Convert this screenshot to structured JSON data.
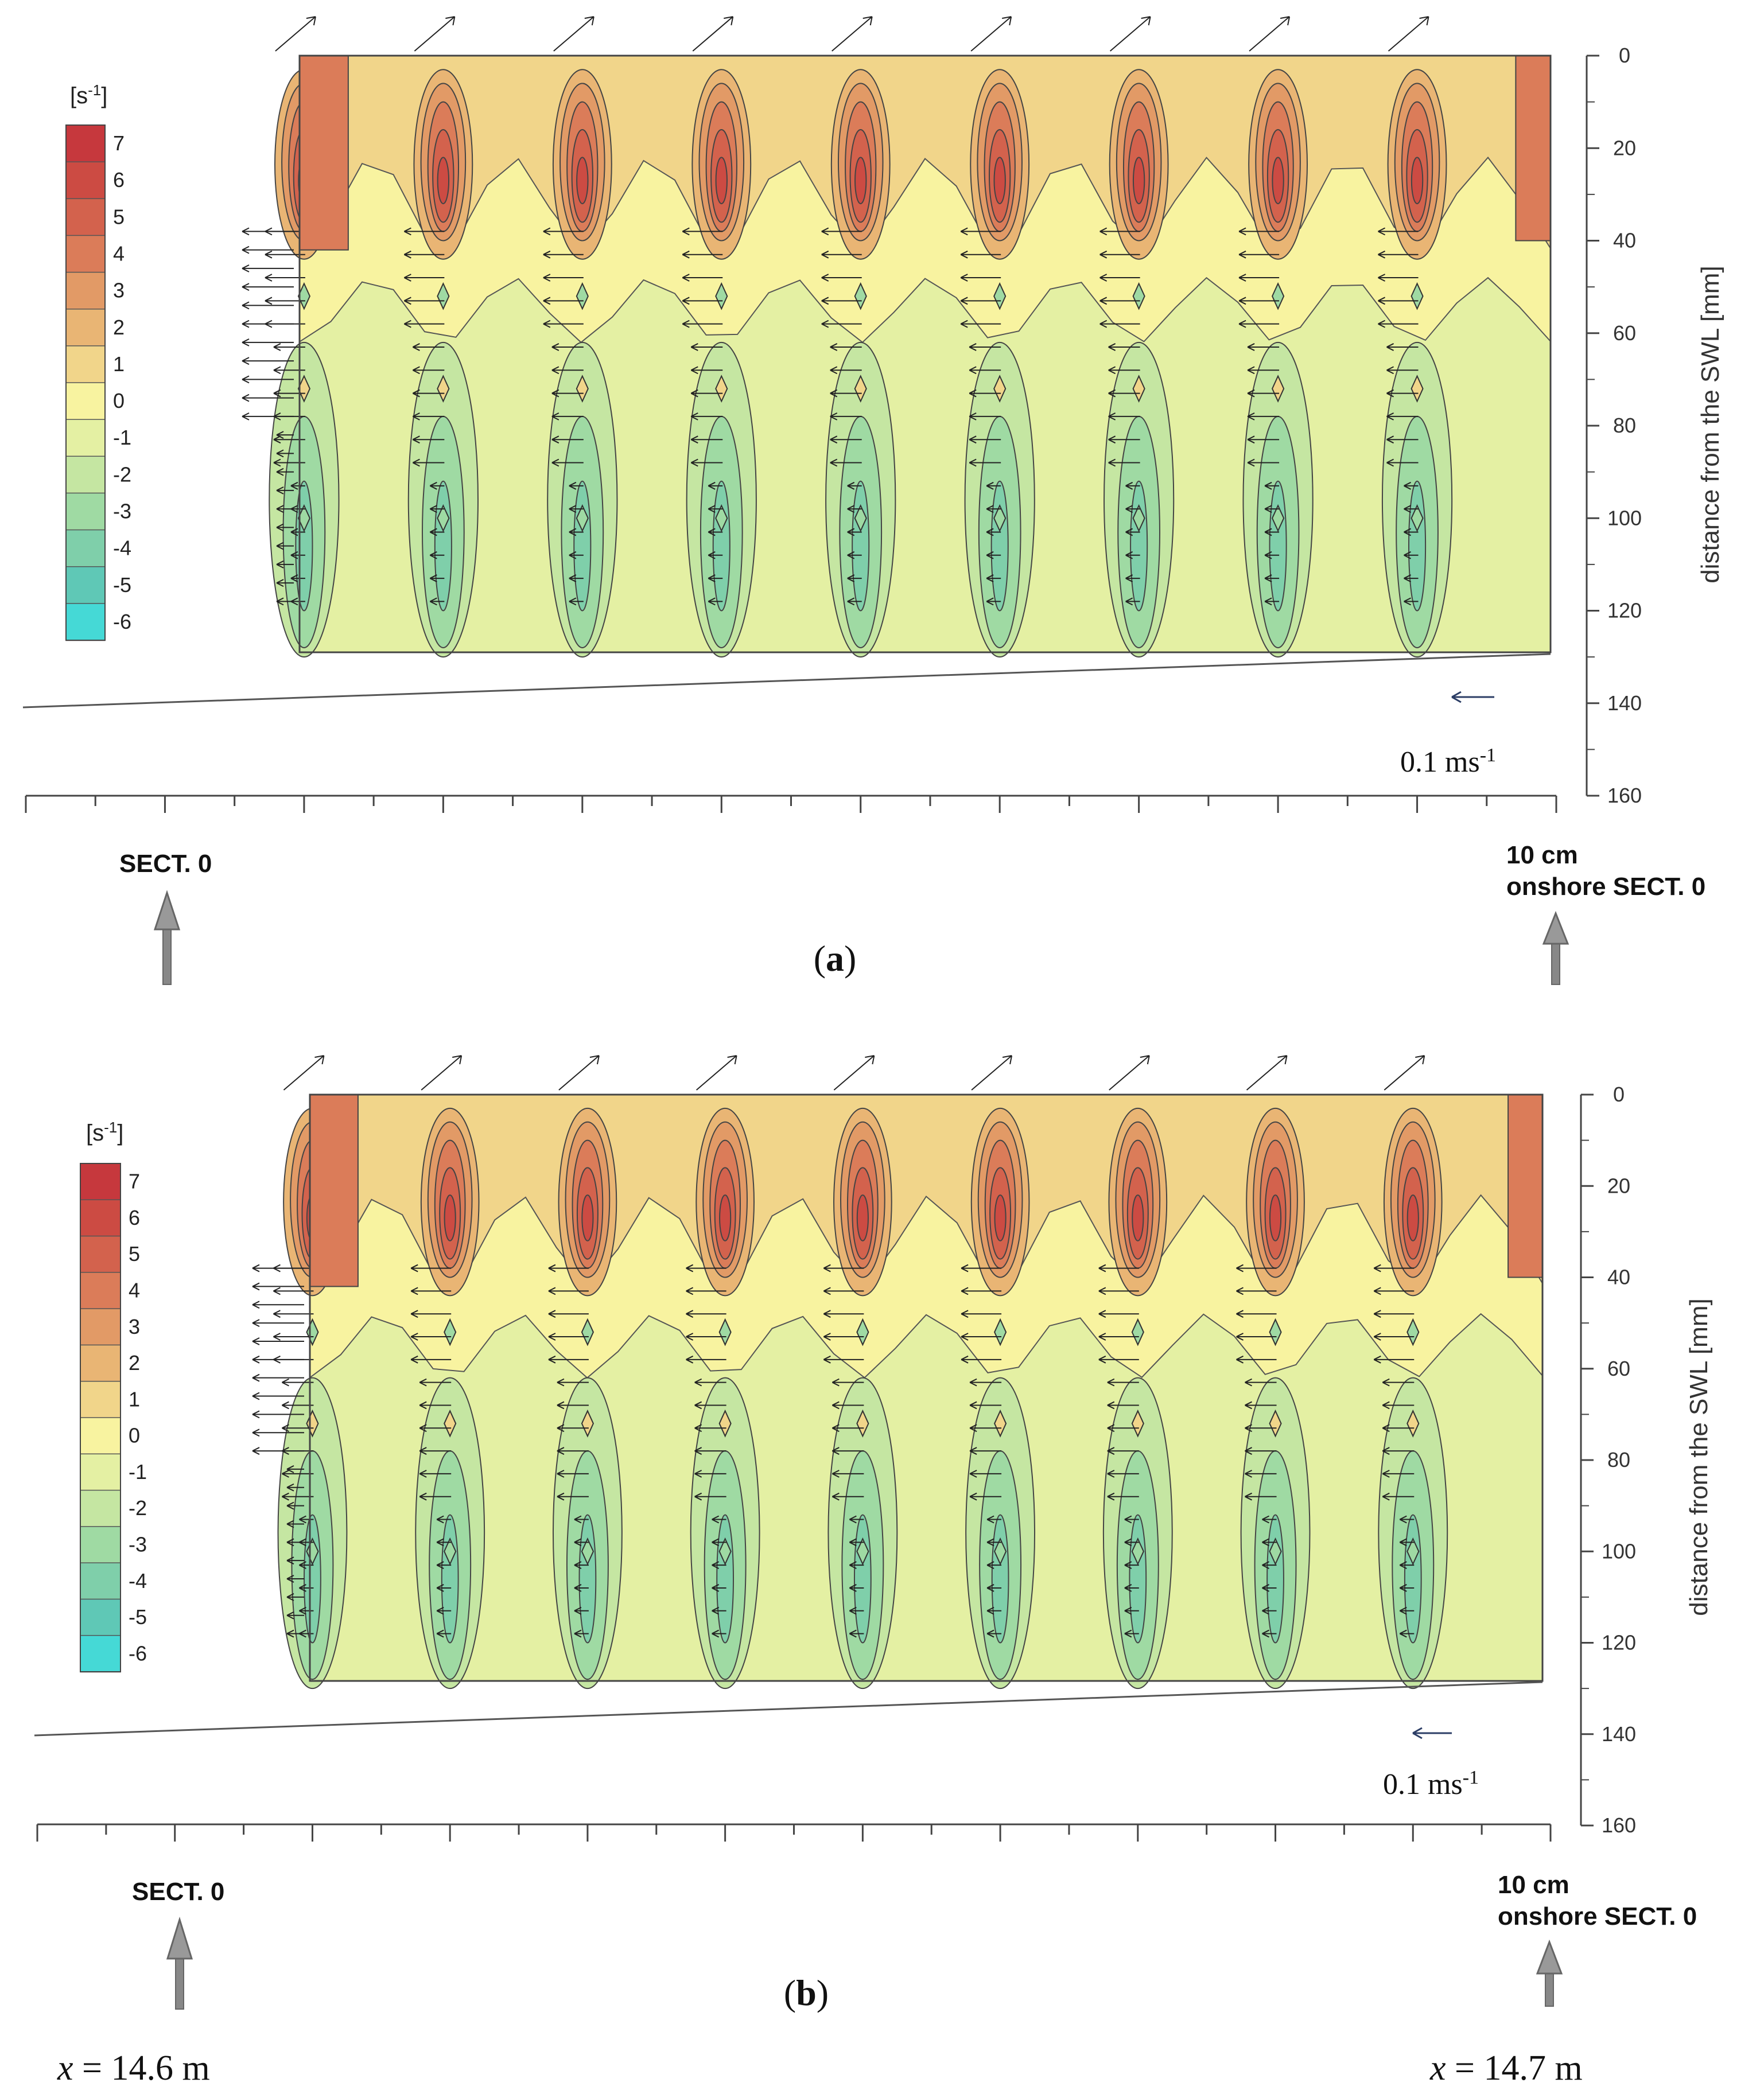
{
  "chart_data": [
    {
      "type": "contour",
      "panel_label": "(a)",
      "panel_letter": "a",
      "colorbar": {
        "unit": "[s-1]",
        "unit_base": "[s",
        "unit_exp": "-1",
        "unit_close": "]",
        "levels": [
          "7",
          "6",
          "5",
          "4",
          "3",
          "2",
          "1",
          "0",
          "-1",
          "-2",
          "-3",
          "-4",
          "-5",
          "-6"
        ],
        "colors": [
          "#c6383d",
          "#cc4b43",
          "#d3624d",
          "#db7c59",
          "#e29a66",
          "#e9b574",
          "#f1d58a",
          "#f8f3a0",
          "#e4f0a3",
          "#c5e6a2",
          "#9fdaa3",
          "#7fcfaa",
          "#5fc8b6",
          "#45d9d6"
        ]
      },
      "y_axis": {
        "label": "distance from the SWL [mm]",
        "ticks": [
          "0",
          "20",
          "40",
          "60",
          "80",
          "100",
          "120",
          "140",
          "160"
        ],
        "range": [
          0,
          160
        ]
      },
      "column_centers_cm": [
        1,
        2,
        3,
        4,
        5,
        6,
        7,
        8,
        9
      ],
      "field_region_mm": [
        0,
        130
      ],
      "scale_arrow_label": "0.1 ms-1",
      "scale_arrow_value": "0.1 ms",
      "scale_arrow_exp": "-1",
      "left_marker": "SECT. 0",
      "right_marker_line1": "10 cm",
      "right_marker_line2": "onshore SECT. 0"
    },
    {
      "type": "contour",
      "panel_label": "(b)",
      "panel_letter": "b",
      "colorbar": {
        "unit": "[s-1]",
        "unit_base": "[s",
        "unit_exp": "-1",
        "unit_close": "]",
        "levels": [
          "7",
          "6",
          "5",
          "4",
          "3",
          "2",
          "1",
          "0",
          "-1",
          "-2",
          "-3",
          "-4",
          "-5",
          "-6"
        ],
        "colors": [
          "#c6383d",
          "#cc4b43",
          "#d3624d",
          "#db7c59",
          "#e29a66",
          "#e9b574",
          "#f1d58a",
          "#f8f3a0",
          "#e4f0a3",
          "#c5e6a2",
          "#9fdaa3",
          "#7fcfaa",
          "#5fc8b6",
          "#45d9d6"
        ]
      },
      "y_axis": {
        "label": "distance from the SWL [mm]",
        "ticks": [
          "0",
          "20",
          "40",
          "60",
          "80",
          "100",
          "120",
          "140",
          "160"
        ],
        "range": [
          0,
          160
        ]
      },
      "column_centers_cm": [
        1,
        2,
        3,
        4,
        5,
        6,
        7,
        8,
        9
      ],
      "field_region_mm": [
        0,
        130
      ],
      "scale_arrow_label": "0.1 ms-1",
      "scale_arrow_value": "0.1 ms",
      "scale_arrow_exp": "-1",
      "left_marker": "SECT. 0",
      "right_marker_line1": "10 cm",
      "right_marker_line2": "onshore SECT. 0",
      "x_left": "x = 14.6 m",
      "x_right": "x = 14.7 m",
      "x_left_var": "x",
      "x_left_val": " = 14.6 m",
      "x_right_var": "x",
      "x_right_val": " = 14.7 m"
    }
  ]
}
